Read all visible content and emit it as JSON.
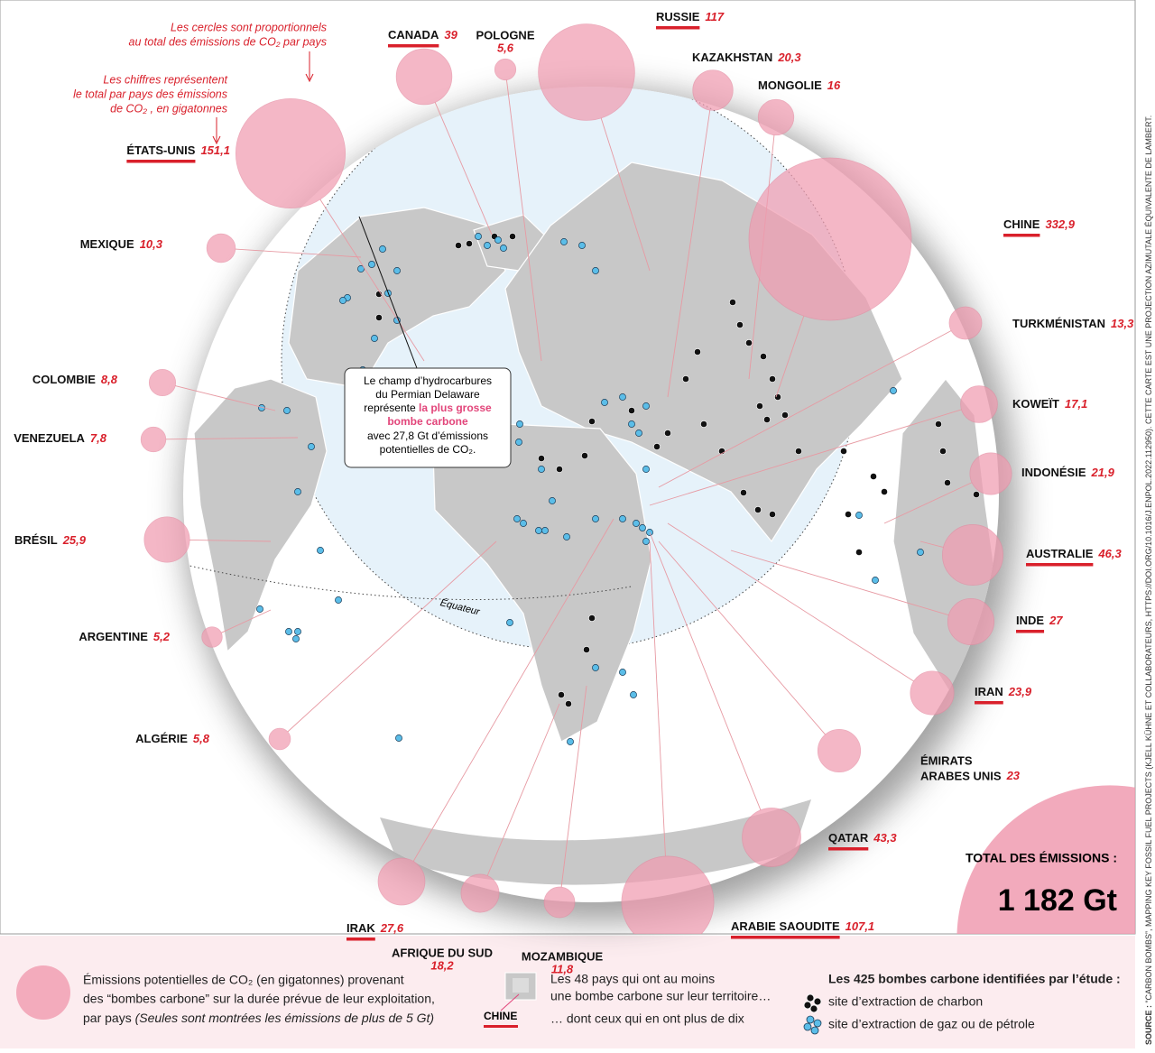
{
  "annotations": {
    "circles_note": [
      "Les cercles sont proportionnels",
      "au total des émissions de CO₂ par pays"
    ],
    "figures_note": [
      "Les chiffres représentent",
      "le total par pays des émissions",
      "de CO₂ , en gigatonnes"
    ]
  },
  "callout": {
    "lines": [
      "Le champ d’hydrocarbures",
      "du Permian Delaware",
      "représente "
    ],
    "highlight": [
      "la plus grosse",
      "bombe carbone"
    ],
    "tail": [
      "avec 27,8 Gt d’émissions",
      "potentielles de CO₂."
    ]
  },
  "equator": "Équateur",
  "countries": [
    {
      "name": "ÉTATS-UNIS",
      "emissions": 151.1,
      "label": "151,1",
      "over_ten_bombs": true
    },
    {
      "name": "CANADA",
      "emissions": 39,
      "label": "39",
      "over_ten_bombs": true
    },
    {
      "name": "POLOGNE",
      "emissions": 5.6,
      "label": "5,6",
      "over_ten_bombs": false
    },
    {
      "name": "RUSSIE",
      "emissions": 117,
      "label": "117",
      "over_ten_bombs": true
    },
    {
      "name": "KAZAKHSTAN",
      "emissions": 20.3,
      "label": "20,3",
      "over_ten_bombs": false
    },
    {
      "name": "MONGOLIE",
      "emissions": 16,
      "label": "16",
      "over_ten_bombs": false
    },
    {
      "name": "CHINE",
      "emissions": 332.9,
      "label": "332,9",
      "over_ten_bombs": true
    },
    {
      "name": "MEXIQUE",
      "emissions": 10.3,
      "label": "10,3",
      "over_ten_bombs": false
    },
    {
      "name": "TURKMÉNISTAN",
      "emissions": 13.3,
      "label": "13,3",
      "over_ten_bombs": false
    },
    {
      "name": "COLOMBIE",
      "emissions": 8.8,
      "label": "8,8",
      "over_ten_bombs": false
    },
    {
      "name": "KOWEÏT",
      "emissions": 17.1,
      "label": "17,1",
      "over_ten_bombs": false
    },
    {
      "name": "VENEZUELA",
      "emissions": 7.8,
      "label": "7,8",
      "over_ten_bombs": false
    },
    {
      "name": "INDONÉSIE",
      "emissions": 21.9,
      "label": "21,9",
      "over_ten_bombs": false
    },
    {
      "name": "BRÉSIL",
      "emissions": 25.9,
      "label": "25,9",
      "over_ten_bombs": false
    },
    {
      "name": "AUSTRALIE",
      "emissions": 46.3,
      "label": "46,3",
      "over_ten_bombs": true
    },
    {
      "name": "ARGENTINE",
      "emissions": 5.2,
      "label": "5,2",
      "over_ten_bombs": false
    },
    {
      "name": "INDE",
      "emissions": 27,
      "label": "27",
      "over_ten_bombs": true
    },
    {
      "name": "IRAN",
      "emissions": 23.9,
      "label": "23,9",
      "over_ten_bombs": true
    },
    {
      "name": "ALGÉRIE",
      "emissions": 5.8,
      "label": "5,8",
      "over_ten_bombs": false
    },
    {
      "name": [
        "ÉMIRATS",
        "ARABES UNIS"
      ],
      "emissions": 23,
      "label": "23",
      "over_ten_bombs": false
    },
    {
      "name": "QATAR",
      "emissions": 43.3,
      "label": "43,3",
      "over_ten_bombs": true
    },
    {
      "name": "IRAK",
      "emissions": 27.6,
      "label": "27,6",
      "over_ten_bombs": true
    },
    {
      "name": "AFRIQUE DU SUD",
      "emissions": 18.2,
      "label": "18,2",
      "over_ten_bombs": false
    },
    {
      "name": "MOZAMBIQUE",
      "emissions": 11.8,
      "label": "11,8",
      "over_ten_bombs": false
    },
    {
      "name": "ARABIE SAOUDITE",
      "emissions": 107.1,
      "label": "107,1",
      "over_ten_bombs": true
    }
  ],
  "total": {
    "label": "TOTAL DES ÉMISSIONS :",
    "value": 1182,
    "value_label": "1 182 Gt"
  },
  "legend": {
    "circles": [
      "Émissions potentielles de CO₂ (en gigatonnes) provenant",
      "des “bombes carbone” sur la durée prévue de leur exploitation,",
      "par pays "
    ],
    "circles_note": "(Seules sont montrées les émissions de plus de 5 Gt)",
    "countries": [
      "Les 48 pays qui ont au moins",
      "une bombe carbone sur leur territoire…"
    ],
    "sample": "CHINE",
    "over_ten": "… dont ceux qui en ont plus de dix",
    "sites_title": "Les 425 bombes carbone identifiées par l’étude :",
    "coal": "site d’extraction de charbon",
    "gas": "site d’extraction de gaz ou de pétrole"
  },
  "source": {
    "label": "SOURCE :",
    "text": " “CARBON BOMBS”, MAPPING KEY FOSSIL FUEL PROJECTS (KJELL KÜHNE ET COLLABORATEURS, HTTPS://DOI.ORG/10.1016/J.ENPOL.2022.112950). CETTE CARTE EST UNE PROJECTION AZIMUTALE ÉQUIVALENTE DE LAMBERT."
  }
}
